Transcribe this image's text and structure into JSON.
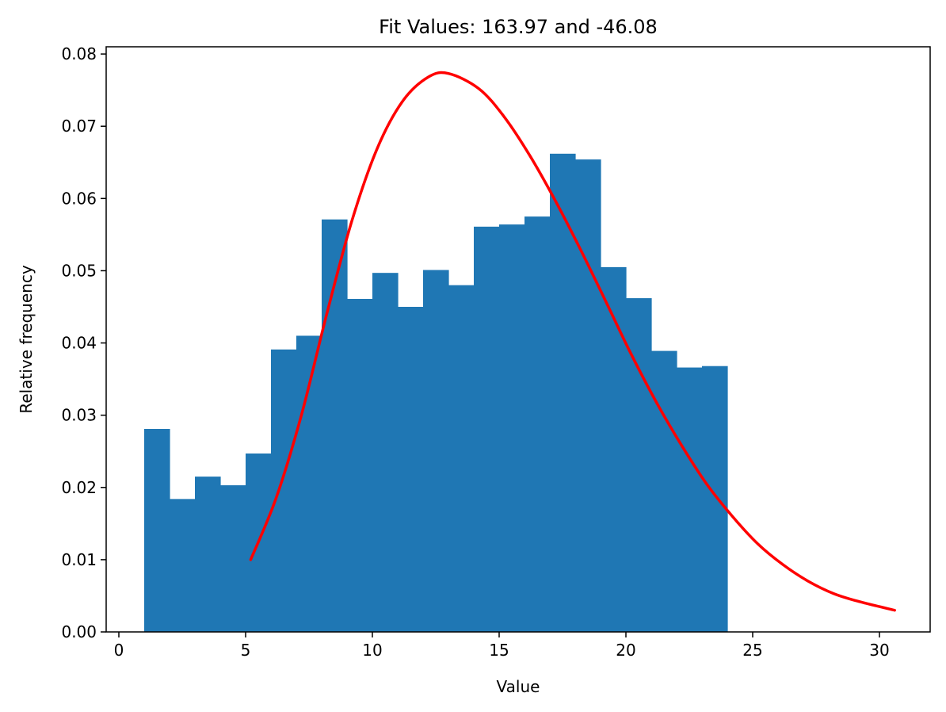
{
  "chart_data": {
    "type": "bar",
    "title": "Fit Values: 163.97 and -46.08",
    "xlabel": "Value",
    "ylabel": "Relative frequency",
    "xlim": [
      -0.5,
      32
    ],
    "ylim": [
      0,
      0.081
    ],
    "xticks": [
      0,
      5,
      10,
      15,
      20,
      25,
      30
    ],
    "xtick_labels": [
      "0",
      "5",
      "10",
      "15",
      "20",
      "25",
      "30"
    ],
    "yticks": [
      0.0,
      0.01,
      0.02,
      0.03,
      0.04,
      0.05,
      0.06,
      0.07,
      0.08
    ],
    "ytick_labels": [
      "0.00",
      "0.01",
      "0.02",
      "0.03",
      "0.04",
      "0.05",
      "0.06",
      "0.07",
      "0.08"
    ],
    "grid": false,
    "bar_color": "#1f77b4",
    "fit_color": "#ff0000",
    "histogram": {
      "bin_edges": [
        1,
        2,
        3,
        4,
        5,
        6,
        7,
        8,
        9,
        10,
        11,
        12,
        13,
        14,
        15,
        16,
        17,
        18,
        19,
        20,
        21,
        22,
        23,
        24
      ],
      "values": [
        0.0281,
        0.0184,
        0.0215,
        0.0203,
        0.0247,
        0.0391,
        0.041,
        0.0571,
        0.0461,
        0.0497,
        0.045,
        0.0501,
        0.048,
        0.0561,
        0.0564,
        0.0575,
        0.0662,
        0.0654,
        0.0505,
        0.0462,
        0.0389,
        0.0366,
        0.0368
      ]
    },
    "fit_curve": {
      "x": [
        5.2,
        6.2,
        7.2,
        8.2,
        9.2,
        10.2,
        11.2,
        12.2,
        13.0,
        14.2,
        15.2,
        16.2,
        17.2,
        18.2,
        19.2,
        20.2,
        21.2,
        22.2,
        23.2,
        24.2,
        25.2,
        26.2,
        27.2,
        28.2,
        29.2,
        30.6
      ],
      "y": [
        0.01,
        0.0185,
        0.03,
        0.044,
        0.057,
        0.067,
        0.0735,
        0.0768,
        0.0773,
        0.0752,
        0.0713,
        0.066,
        0.0598,
        0.053,
        0.0458,
        0.0385,
        0.0318,
        0.0258,
        0.0204,
        0.016,
        0.0122,
        0.0093,
        0.007,
        0.0053,
        0.0042,
        0.003
      ]
    }
  }
}
